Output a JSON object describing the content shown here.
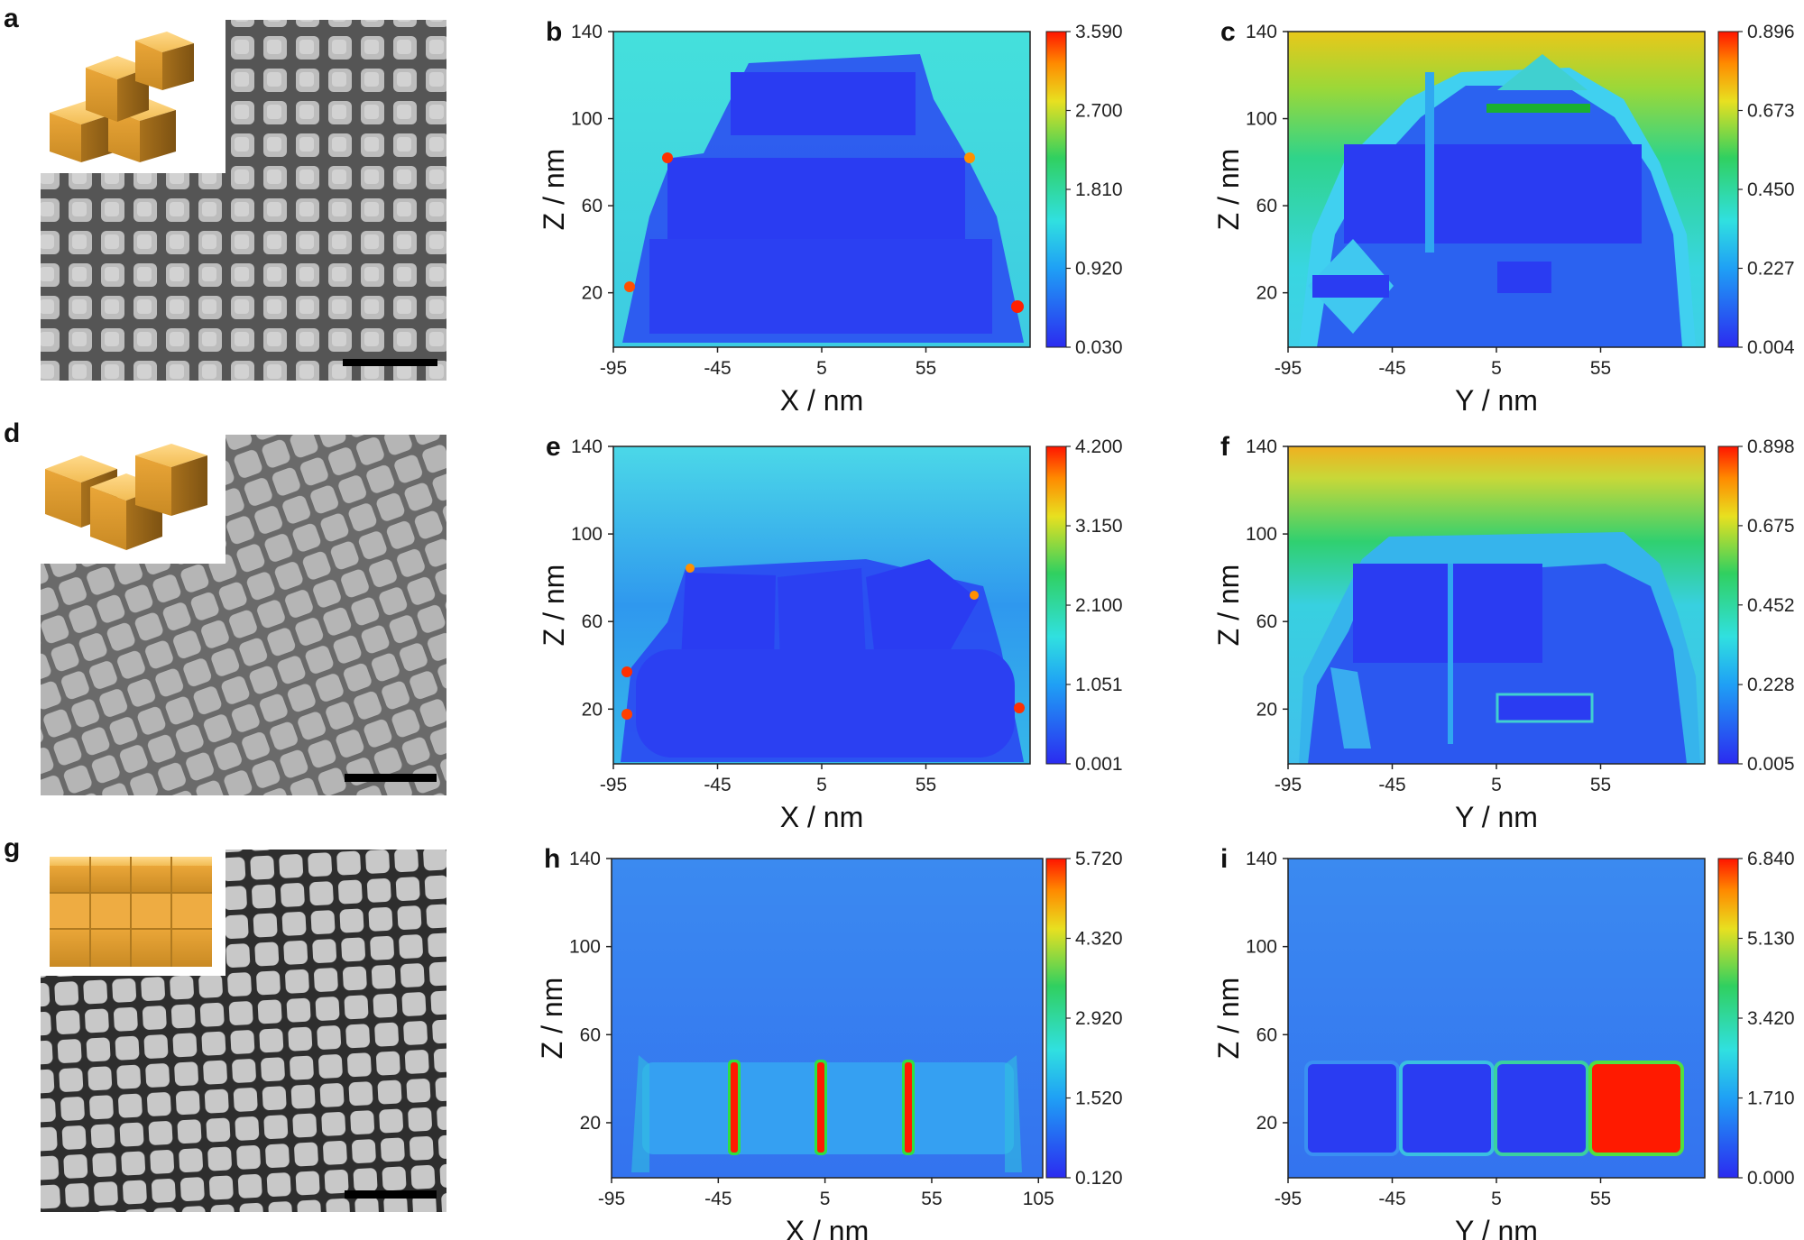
{
  "colors": {
    "map_low": "#2a3cf2",
    "map_background": "#3fd0e0",
    "accent_red": "#ff1a00",
    "sem_background": "#6b6b6b",
    "cube_gold": "#f0b648"
  },
  "sem_panels": [
    {
      "letter": "a",
      "arrangement": "random-packing",
      "inset": "cube-cluster-random"
    },
    {
      "letter": "d",
      "arrangement": "tilted-packing",
      "inset": "cube-cluster-tilted"
    },
    {
      "letter": "g",
      "arrangement": "ordered-square-lattice",
      "inset": "cube-cluster-ordered"
    }
  ],
  "chart_data": [
    {
      "letter": "b",
      "type": "heatmap",
      "xlabel": "X / nm",
      "ylabel": "Z / nm",
      "xticks": [
        "-95",
        "-45",
        "5",
        "55"
      ],
      "yticks": [
        "20",
        "60",
        "100",
        "140"
      ],
      "xlim": [
        -95,
        105
      ],
      "ylim": [
        -5,
        140
      ],
      "colorbar": [
        "3.590",
        "2.700",
        "1.810",
        "0.920",
        "0.030"
      ],
      "colorbar_range": [
        0.03,
        3.59
      ],
      "background": "cyan"
    },
    {
      "letter": "c",
      "type": "heatmap",
      "xlabel": "Y / nm",
      "ylabel": "Z / nm",
      "xticks": [
        "-95",
        "-45",
        "5",
        "55"
      ],
      "yticks": [
        "20",
        "60",
        "100",
        "140"
      ],
      "xlim": [
        -95,
        105
      ],
      "ylim": [
        -5,
        140
      ],
      "colorbar": [
        "0.896",
        "0.673",
        "0.450",
        "0.227",
        "0.004"
      ],
      "colorbar_range": [
        0.004,
        0.896
      ],
      "background": "gradient"
    },
    {
      "letter": "e",
      "type": "heatmap",
      "xlabel": "X / nm",
      "ylabel": "Z / nm",
      "xticks": [
        "-95",
        "-45",
        "5",
        "55"
      ],
      "yticks": [
        "20",
        "60",
        "100",
        "140"
      ],
      "xlim": [
        -95,
        105
      ],
      "ylim": [
        -5,
        140
      ],
      "colorbar": [
        "4.200",
        "3.150",
        "2.100",
        "1.051",
        "0.001"
      ],
      "colorbar_range": [
        0.001,
        4.2
      ],
      "background": "lightblue"
    },
    {
      "letter": "f",
      "type": "heatmap",
      "xlabel": "Y / nm",
      "ylabel": "Z / nm",
      "xticks": [
        "-95",
        "-45",
        "5",
        "55"
      ],
      "yticks": [
        "20",
        "60",
        "100",
        "140"
      ],
      "xlim": [
        -95,
        105
      ],
      "ylim": [
        -5,
        140
      ],
      "colorbar": [
        "0.898",
        "0.675",
        "0.452",
        "0.228",
        "0.005"
      ],
      "colorbar_range": [
        0.005,
        0.898
      ],
      "background": "gradient"
    },
    {
      "letter": "h",
      "type": "heatmap",
      "xlabel": "X / nm",
      "ylabel": "Z / nm",
      "xticks": [
        "-95",
        "-45",
        "5",
        "55",
        "105"
      ],
      "yticks": [
        "20",
        "60",
        "100",
        "140"
      ],
      "xlim": [
        -95,
        107
      ],
      "ylim": [
        -5,
        140
      ],
      "colorbar": [
        "5.720",
        "4.320",
        "2.920",
        "1.520",
        "0.120"
      ],
      "colorbar_range": [
        0.12,
        5.72
      ],
      "background": "blue"
    },
    {
      "letter": "i",
      "type": "heatmap",
      "xlabel": "Y / nm",
      "ylabel": "Z / nm",
      "xticks": [
        "-95",
        "-45",
        "5",
        "55"
      ],
      "yticks": [
        "20",
        "60",
        "100",
        "140"
      ],
      "xlim": [
        -95,
        105
      ],
      "ylim": [
        -5,
        140
      ],
      "colorbar": [
        "6.840",
        "5.130",
        "3.420",
        "1.710",
        "0.000"
      ],
      "colorbar_range": [
        0.0,
        6.84
      ],
      "background": "blue"
    }
  ]
}
